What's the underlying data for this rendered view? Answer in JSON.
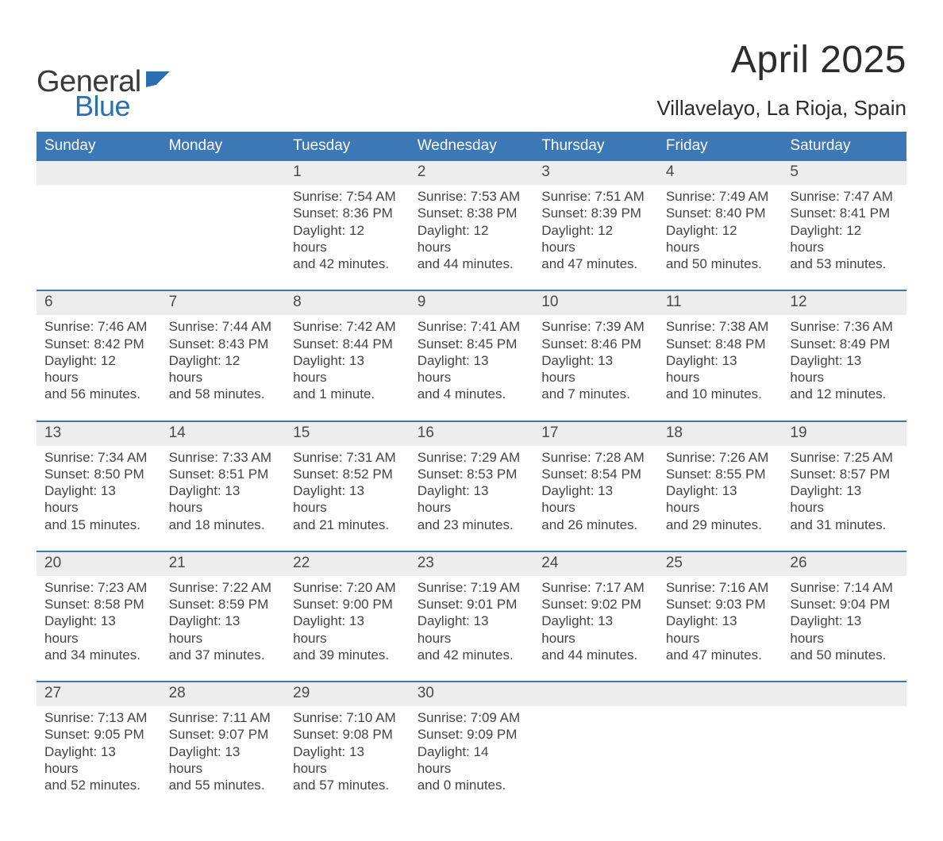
{
  "colors": {
    "header_blue": "#3b78b5",
    "accent_blue": "#2f6aa8",
    "date_row_bg": "#ededed",
    "week_rule": "#3b78b5",
    "text": "#3c3c3c",
    "page_bg": "#ffffff",
    "logo_blue": "#2a6fb3"
  },
  "logo": {
    "word1": "General",
    "word2": "Blue"
  },
  "title": "April 2025",
  "location": "Villavelayo, La Rioja, Spain",
  "days_of_week": [
    "Sunday",
    "Monday",
    "Tuesday",
    "Wednesday",
    "Thursday",
    "Friday",
    "Saturday"
  ],
  "weeks": [
    [
      {
        "date": "",
        "lines": []
      },
      {
        "date": "",
        "lines": []
      },
      {
        "date": "1",
        "lines": [
          "Sunrise: 7:54 AM",
          "Sunset: 8:36 PM",
          "Daylight: 12 hours",
          "and 42 minutes."
        ]
      },
      {
        "date": "2",
        "lines": [
          "Sunrise: 7:53 AM",
          "Sunset: 8:38 PM",
          "Daylight: 12 hours",
          "and 44 minutes."
        ]
      },
      {
        "date": "3",
        "lines": [
          "Sunrise: 7:51 AM",
          "Sunset: 8:39 PM",
          "Daylight: 12 hours",
          "and 47 minutes."
        ]
      },
      {
        "date": "4",
        "lines": [
          "Sunrise: 7:49 AM",
          "Sunset: 8:40 PM",
          "Daylight: 12 hours",
          "and 50 minutes."
        ]
      },
      {
        "date": "5",
        "lines": [
          "Sunrise: 7:47 AM",
          "Sunset: 8:41 PM",
          "Daylight: 12 hours",
          "and 53 minutes."
        ]
      }
    ],
    [
      {
        "date": "6",
        "lines": [
          "Sunrise: 7:46 AM",
          "Sunset: 8:42 PM",
          "Daylight: 12 hours",
          "and 56 minutes."
        ]
      },
      {
        "date": "7",
        "lines": [
          "Sunrise: 7:44 AM",
          "Sunset: 8:43 PM",
          "Daylight: 12 hours",
          "and 58 minutes."
        ]
      },
      {
        "date": "8",
        "lines": [
          "Sunrise: 7:42 AM",
          "Sunset: 8:44 PM",
          "Daylight: 13 hours",
          "and 1 minute."
        ]
      },
      {
        "date": "9",
        "lines": [
          "Sunrise: 7:41 AM",
          "Sunset: 8:45 PM",
          "Daylight: 13 hours",
          "and 4 minutes."
        ]
      },
      {
        "date": "10",
        "lines": [
          "Sunrise: 7:39 AM",
          "Sunset: 8:46 PM",
          "Daylight: 13 hours",
          "and 7 minutes."
        ]
      },
      {
        "date": "11",
        "lines": [
          "Sunrise: 7:38 AM",
          "Sunset: 8:48 PM",
          "Daylight: 13 hours",
          "and 10 minutes."
        ]
      },
      {
        "date": "12",
        "lines": [
          "Sunrise: 7:36 AM",
          "Sunset: 8:49 PM",
          "Daylight: 13 hours",
          "and 12 minutes."
        ]
      }
    ],
    [
      {
        "date": "13",
        "lines": [
          "Sunrise: 7:34 AM",
          "Sunset: 8:50 PM",
          "Daylight: 13 hours",
          "and 15 minutes."
        ]
      },
      {
        "date": "14",
        "lines": [
          "Sunrise: 7:33 AM",
          "Sunset: 8:51 PM",
          "Daylight: 13 hours",
          "and 18 minutes."
        ]
      },
      {
        "date": "15",
        "lines": [
          "Sunrise: 7:31 AM",
          "Sunset: 8:52 PM",
          "Daylight: 13 hours",
          "and 21 minutes."
        ]
      },
      {
        "date": "16",
        "lines": [
          "Sunrise: 7:29 AM",
          "Sunset: 8:53 PM",
          "Daylight: 13 hours",
          "and 23 minutes."
        ]
      },
      {
        "date": "17",
        "lines": [
          "Sunrise: 7:28 AM",
          "Sunset: 8:54 PM",
          "Daylight: 13 hours",
          "and 26 minutes."
        ]
      },
      {
        "date": "18",
        "lines": [
          "Sunrise: 7:26 AM",
          "Sunset: 8:55 PM",
          "Daylight: 13 hours",
          "and 29 minutes."
        ]
      },
      {
        "date": "19",
        "lines": [
          "Sunrise: 7:25 AM",
          "Sunset: 8:57 PM",
          "Daylight: 13 hours",
          "and 31 minutes."
        ]
      }
    ],
    [
      {
        "date": "20",
        "lines": [
          "Sunrise: 7:23 AM",
          "Sunset: 8:58 PM",
          "Daylight: 13 hours",
          "and 34 minutes."
        ]
      },
      {
        "date": "21",
        "lines": [
          "Sunrise: 7:22 AM",
          "Sunset: 8:59 PM",
          "Daylight: 13 hours",
          "and 37 minutes."
        ]
      },
      {
        "date": "22",
        "lines": [
          "Sunrise: 7:20 AM",
          "Sunset: 9:00 PM",
          "Daylight: 13 hours",
          "and 39 minutes."
        ]
      },
      {
        "date": "23",
        "lines": [
          "Sunrise: 7:19 AM",
          "Sunset: 9:01 PM",
          "Daylight: 13 hours",
          "and 42 minutes."
        ]
      },
      {
        "date": "24",
        "lines": [
          "Sunrise: 7:17 AM",
          "Sunset: 9:02 PM",
          "Daylight: 13 hours",
          "and 44 minutes."
        ]
      },
      {
        "date": "25",
        "lines": [
          "Sunrise: 7:16 AM",
          "Sunset: 9:03 PM",
          "Daylight: 13 hours",
          "and 47 minutes."
        ]
      },
      {
        "date": "26",
        "lines": [
          "Sunrise: 7:14 AM",
          "Sunset: 9:04 PM",
          "Daylight: 13 hours",
          "and 50 minutes."
        ]
      }
    ],
    [
      {
        "date": "27",
        "lines": [
          "Sunrise: 7:13 AM",
          "Sunset: 9:05 PM",
          "Daylight: 13 hours",
          "and 52 minutes."
        ]
      },
      {
        "date": "28",
        "lines": [
          "Sunrise: 7:11 AM",
          "Sunset: 9:07 PM",
          "Daylight: 13 hours",
          "and 55 minutes."
        ]
      },
      {
        "date": "29",
        "lines": [
          "Sunrise: 7:10 AM",
          "Sunset: 9:08 PM",
          "Daylight: 13 hours",
          "and 57 minutes."
        ]
      },
      {
        "date": "30",
        "lines": [
          "Sunrise: 7:09 AM",
          "Sunset: 9:09 PM",
          "Daylight: 14 hours",
          "and 0 minutes."
        ]
      },
      {
        "date": "",
        "lines": []
      },
      {
        "date": "",
        "lines": []
      },
      {
        "date": "",
        "lines": []
      }
    ]
  ]
}
